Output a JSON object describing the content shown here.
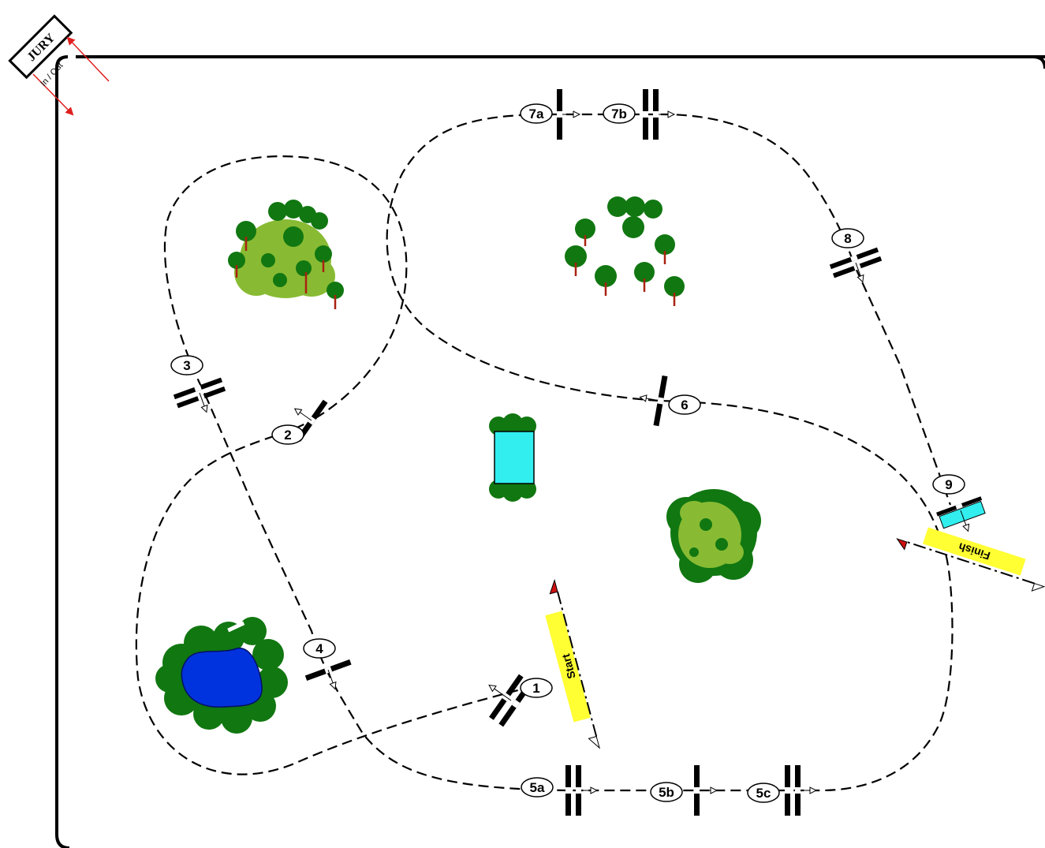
{
  "jury": {
    "label": "JURY",
    "entrance_label": "In / Out"
  },
  "start_line": {
    "label": "Start"
  },
  "finish_line": {
    "label": "Finish"
  },
  "obstacles": [
    {
      "id": "1",
      "label": "1"
    },
    {
      "id": "2",
      "label": "2"
    },
    {
      "id": "3",
      "label": "3"
    },
    {
      "id": "4",
      "label": "4"
    },
    {
      "id": "5a",
      "label": "5a"
    },
    {
      "id": "5b",
      "label": "5b"
    },
    {
      "id": "5c",
      "label": "5c"
    },
    {
      "id": "6",
      "label": "6"
    },
    {
      "id": "7a",
      "label": "7a"
    },
    {
      "id": "7b",
      "label": "7b"
    },
    {
      "id": "8",
      "label": "8"
    },
    {
      "id": "9",
      "label": "9"
    }
  ],
  "colors": {
    "arena_border": "#000000",
    "jury_arrow": "#e02020",
    "start_finish_fill": "#ffff33",
    "water": "#0033dd",
    "water_jump": "#33eeee",
    "tree_dark": "#117711",
    "tree_light": "#88bb33",
    "tree_trunk": "#aa2211"
  }
}
